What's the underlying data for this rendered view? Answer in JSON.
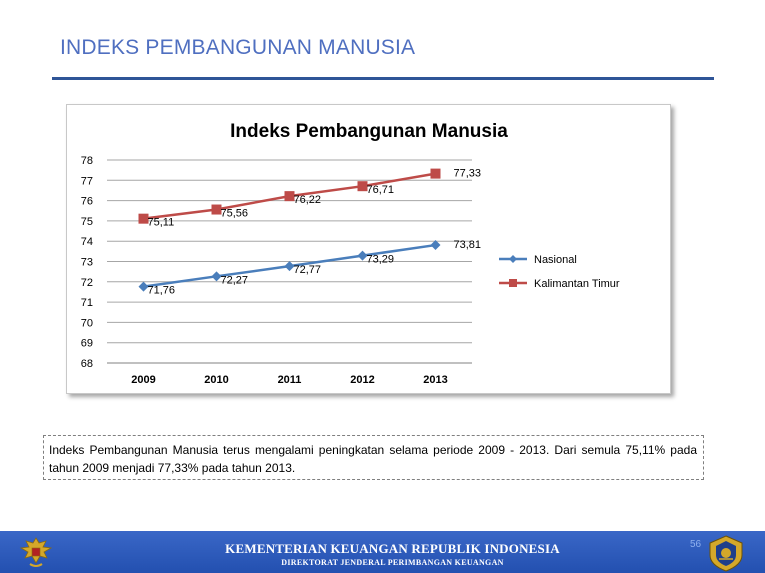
{
  "slide": {
    "title": "INDEKS PEMBANGUNAN MANUSIA",
    "accent_color": "#4f6fc0",
    "rule_color": "#2f5597"
  },
  "chart_data": {
    "type": "line",
    "title": "Indeks Pembangunan Manusia",
    "categories": [
      "2009",
      "2010",
      "2011",
      "2012",
      "2013"
    ],
    "ylim": [
      68,
      78
    ],
    "yticks": [
      "68",
      "69",
      "70",
      "71",
      "72",
      "73",
      "74",
      "75",
      "76",
      "77",
      "78"
    ],
    "grid": true,
    "legend_position": "right",
    "series": [
      {
        "name": "Nasional",
        "color": "#4a7ebb",
        "marker": "diamond",
        "values": [
          71.76,
          72.27,
          72.77,
          73.29,
          73.81
        ],
        "labels": [
          "71,76",
          "72,27",
          "72,77",
          "73,29",
          "73,81"
        ]
      },
      {
        "name": "Kalimantan Timur",
        "color": "#be4b48",
        "marker": "square",
        "values": [
          75.11,
          75.56,
          76.22,
          76.71,
          77.33
        ],
        "labels": [
          "75,11",
          "75,56",
          "76,22",
          "76,71",
          "77,33"
        ]
      }
    ]
  },
  "caption": {
    "text": "Indeks Pembangunan Manusia terus mengalami peningkatan selama periode 2009 - 2013. Dari semula 75,11% pada tahun 2009 menjadi 77,33% pada tahun 2013."
  },
  "footer": {
    "ministry": "KEMENTERIAN KEUANGAN REPUBLIK INDONESIA",
    "directorate": "DIREKTORAT JENDERAL PERIMBANGAN KEUANGAN",
    "page_number": "56",
    "bar_color": "#2a56b8",
    "left_logo_icon": "garuda-emblem-icon",
    "right_logo_icon": "ministry-of-finance-emblem-icon"
  }
}
